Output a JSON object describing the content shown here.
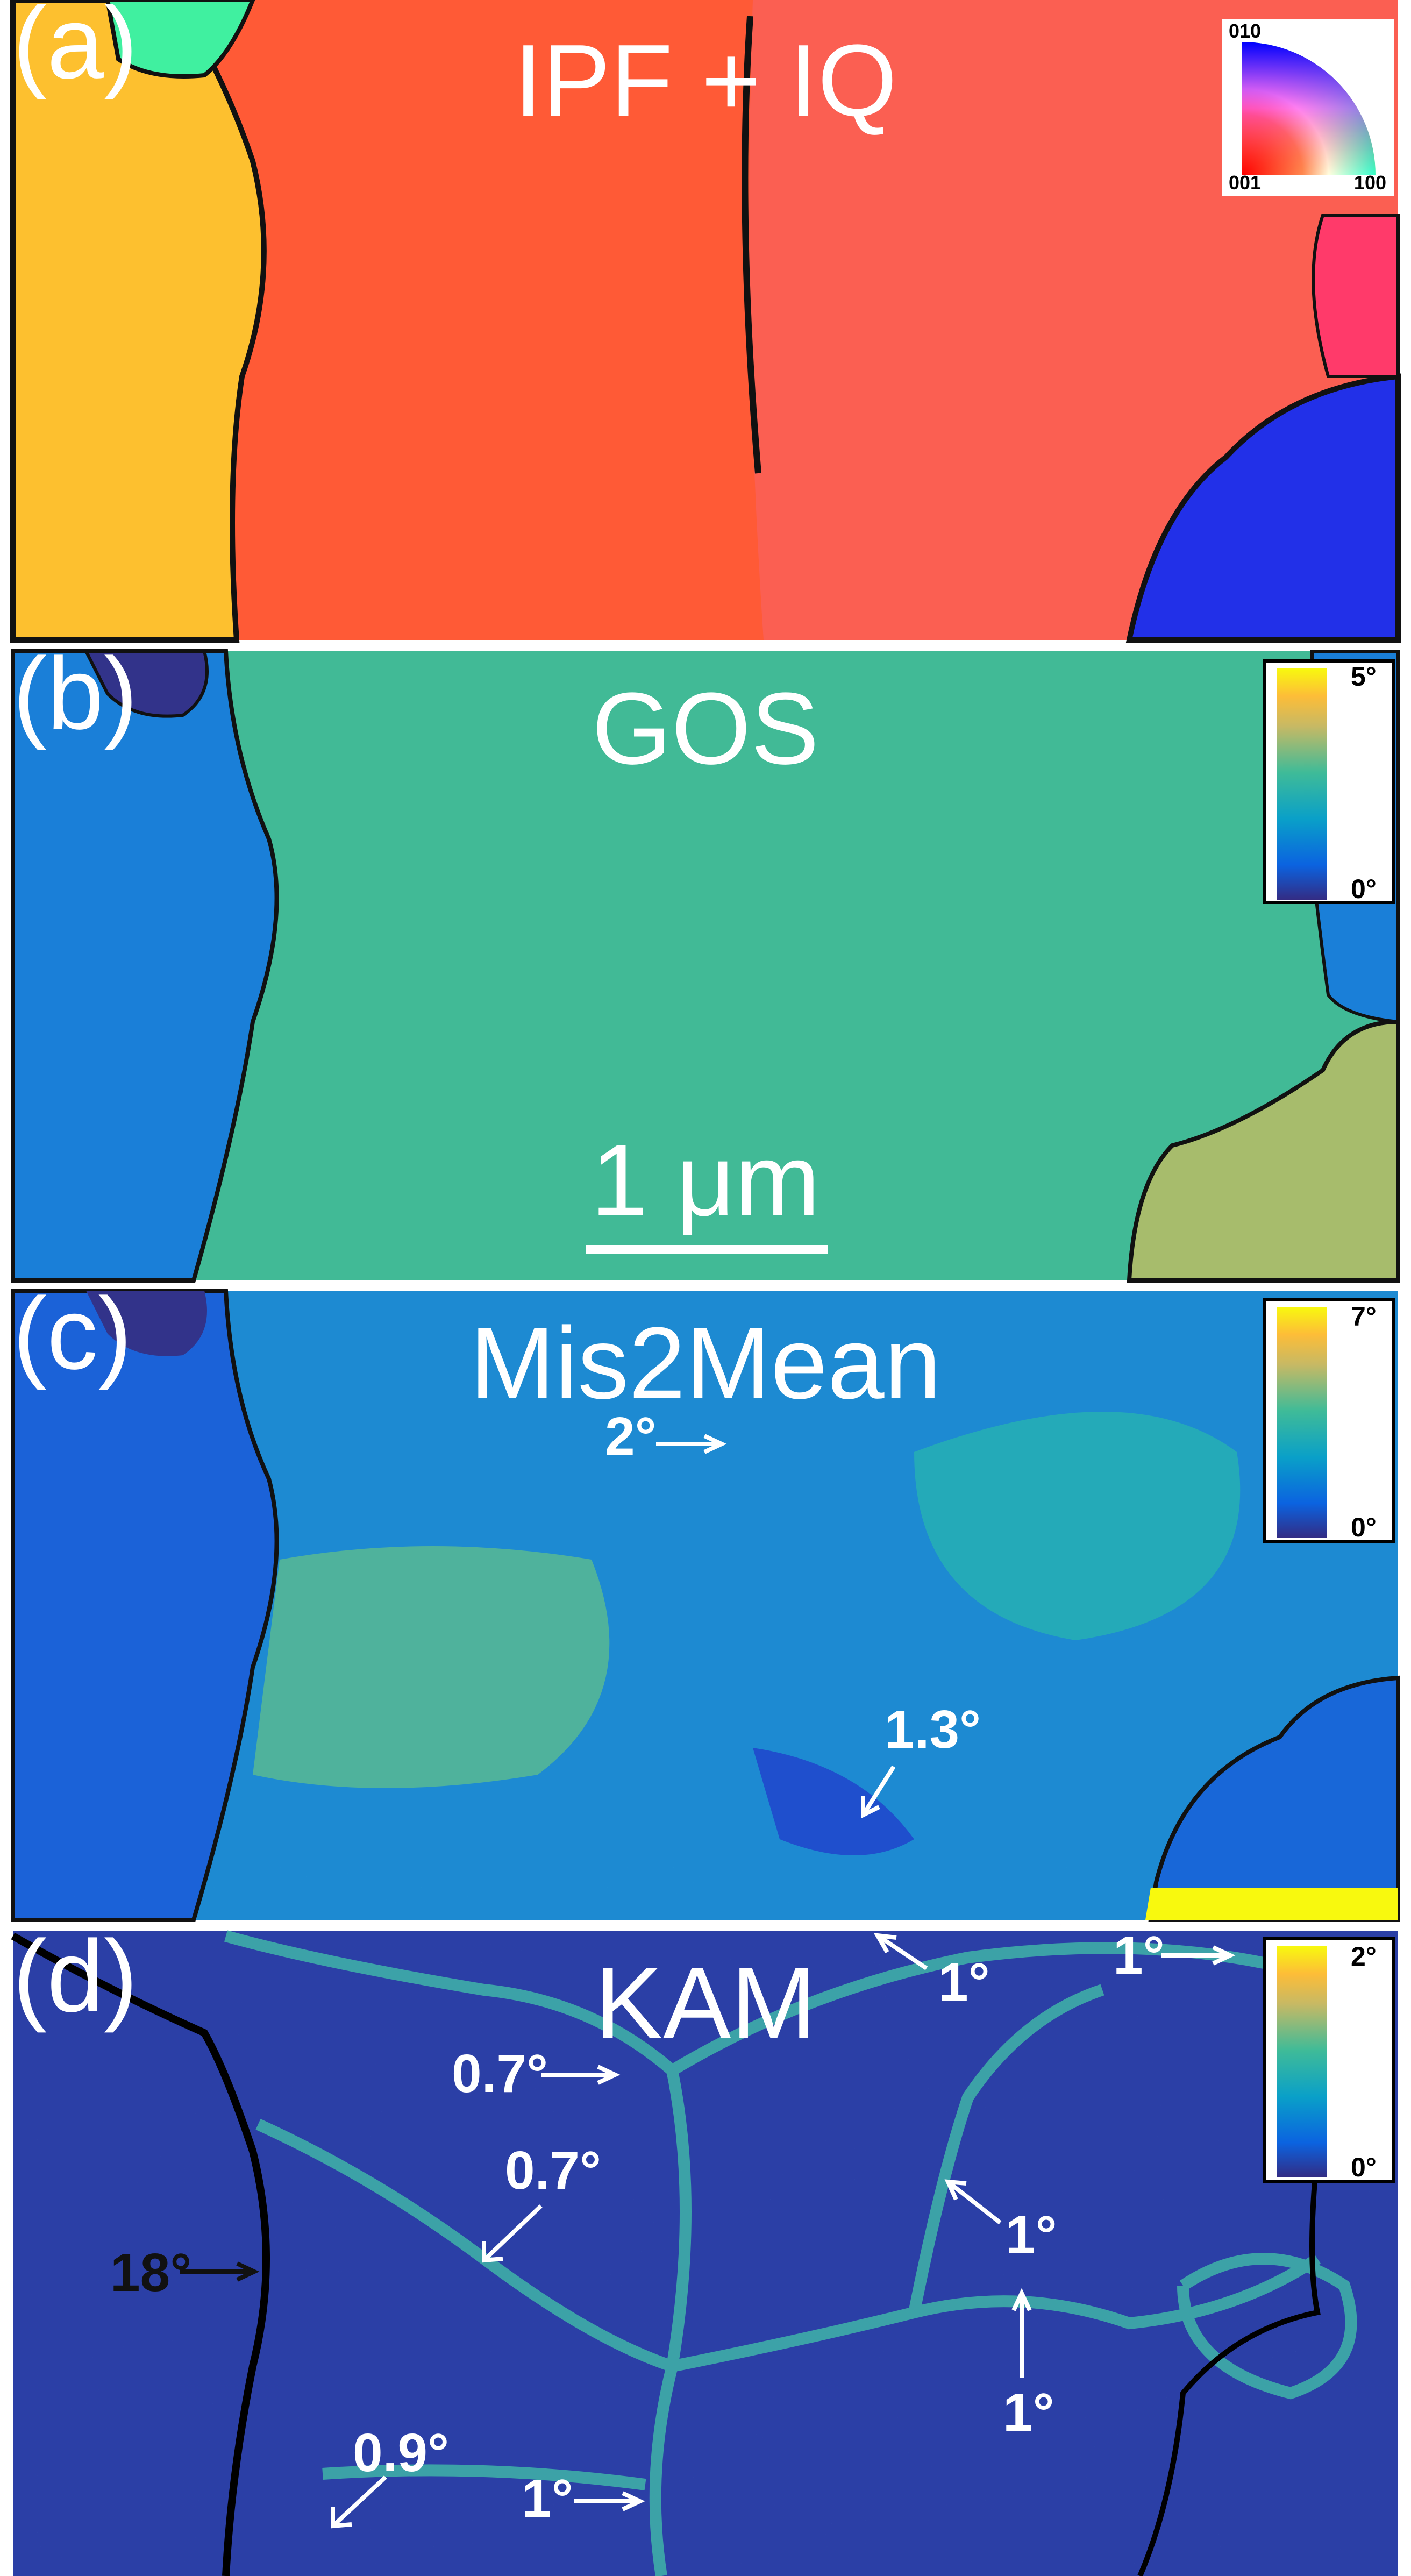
{
  "panels": [
    {
      "id": "a",
      "label": "(a)",
      "title": "IPF + IQ",
      "legend": {
        "type": "inverse-pole-figure",
        "corner_top": "010",
        "corner_bottom_left": "001",
        "corner_bottom_right": "100"
      }
    },
    {
      "id": "b",
      "label": "(b)",
      "title": "GOS",
      "legend": {
        "type": "colorbar",
        "max": "5°",
        "min": "0°"
      },
      "scale_bar": "1 μm"
    },
    {
      "id": "c",
      "label": "(c)",
      "title": "Mis2Mean",
      "legend": {
        "type": "colorbar",
        "max": "7°",
        "min": "0°"
      },
      "annotations": [
        "2°",
        "1.3°"
      ]
    },
    {
      "id": "d",
      "label": "(d)",
      "title": "KAM",
      "legend": {
        "type": "colorbar",
        "max": "2°",
        "min": "0°"
      },
      "annotations": [
        "0.7°",
        "0.7°",
        "1°",
        "1°",
        "1°",
        "1°",
        "18°",
        "0.9°",
        "1°"
      ]
    }
  ],
  "colors": {
    "ipf_yellow": "#fdc02f",
    "ipf_orange": "#ff5a36",
    "ipf_red": "#fb5f52",
    "ipf_blue": "#2230e8",
    "ipf_green": "#40f0a0",
    "gos_main": "#41ba96",
    "gos_blue": "#1a7fd8",
    "kam_bg": "#2b3fa6"
  }
}
